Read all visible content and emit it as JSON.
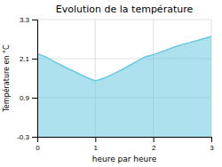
{
  "chart_data": {
    "type": "area",
    "title": "Evolution de la température",
    "x_label": "heure par heure",
    "y_label": "Température en °C",
    "x": [
      0.0,
      0.15,
      0.3,
      0.5,
      0.7,
      0.85,
      1.0,
      1.15,
      1.3,
      1.5,
      1.7,
      1.85,
      2.0,
      2.2,
      2.4,
      2.6,
      2.8,
      3.0
    ],
    "values": [
      2.25,
      2.15,
      2.0,
      1.82,
      1.65,
      1.52,
      1.42,
      1.5,
      1.62,
      1.8,
      2.0,
      2.15,
      2.22,
      2.35,
      2.48,
      2.58,
      2.68,
      2.78
    ],
    "color": "#6cc8e0",
    "xlim": [
      0,
      3
    ],
    "ylim": [
      -0.3,
      3.3
    ],
    "xticks": [
      0,
      1,
      2,
      3
    ],
    "yticks": [
      -0.3,
      0.9,
      2.1,
      3.3
    ],
    "grid": true
  }
}
